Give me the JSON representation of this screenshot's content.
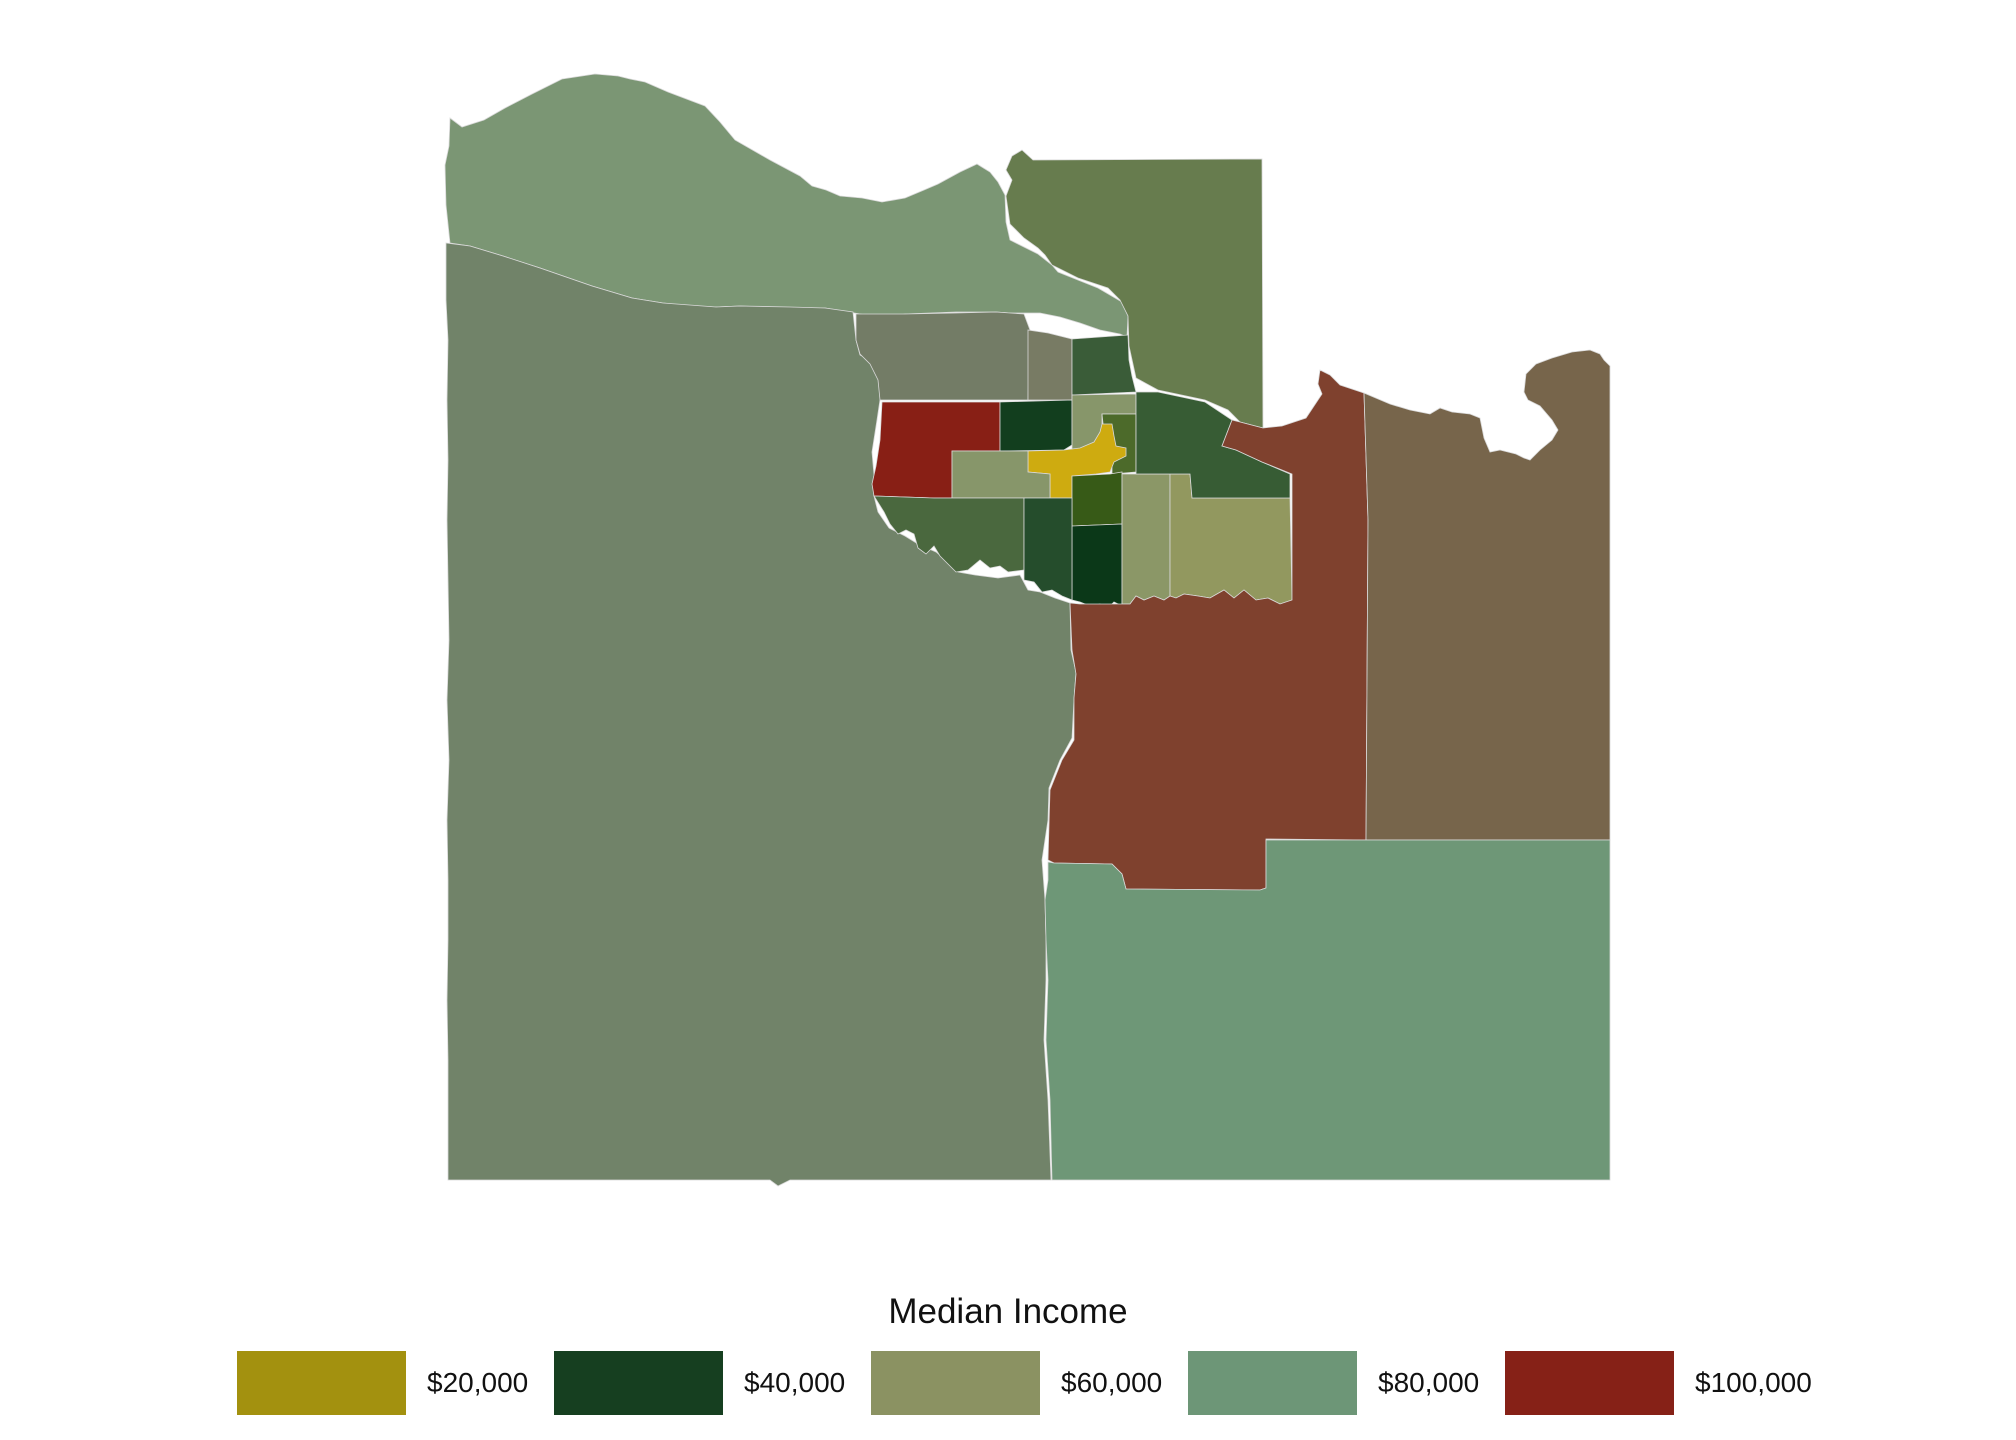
{
  "legend": {
    "title": "Median Income",
    "items": [
      {
        "label": "$20,000",
        "color": "#a3910f"
      },
      {
        "label": "$40,000",
        "color": "#163f20"
      },
      {
        "label": "$60,000",
        "color": "#8b9262"
      },
      {
        "label": "$80,000",
        "color": "#6d9677"
      },
      {
        "label": "$100,000",
        "color": "#862117"
      }
    ]
  },
  "regions": [
    {
      "id": "north-lakeshore",
      "color": "#7b9674"
    },
    {
      "id": "northeast",
      "color": "#677c4e"
    },
    {
      "id": "west",
      "color": "#718369"
    },
    {
      "id": "central-north",
      "color": "#737c66"
    },
    {
      "id": "central-north-narrow",
      "color": "#787b64"
    },
    {
      "id": "center-west-red",
      "color": "#881f15"
    },
    {
      "id": "center-dark-a",
      "color": "#123e1e"
    },
    {
      "id": "center-dark-b",
      "color": "#3a5c38"
    },
    {
      "id": "center-light-a",
      "color": "#87966a"
    },
    {
      "id": "center-olive",
      "color": "#4c6a2a"
    },
    {
      "id": "center-gold",
      "color": "#ceab10"
    },
    {
      "id": "center-olive-b",
      "color": "#375a17"
    },
    {
      "id": "center-dark-c",
      "color": "#0b3818"
    },
    {
      "id": "center-light-b",
      "color": "#8b9767"
    },
    {
      "id": "center-light-c",
      "color": "#92985f"
    },
    {
      "id": "center-green-e",
      "color": "#375c34"
    },
    {
      "id": "southwest-green",
      "color": "#4a683e"
    },
    {
      "id": "southwest-green-b",
      "color": "#254d2c"
    },
    {
      "id": "east-brown",
      "color": "#7f412e"
    },
    {
      "id": "far-east",
      "color": "#77654b"
    },
    {
      "id": "southeast",
      "color": "#6e9777"
    }
  ]
}
